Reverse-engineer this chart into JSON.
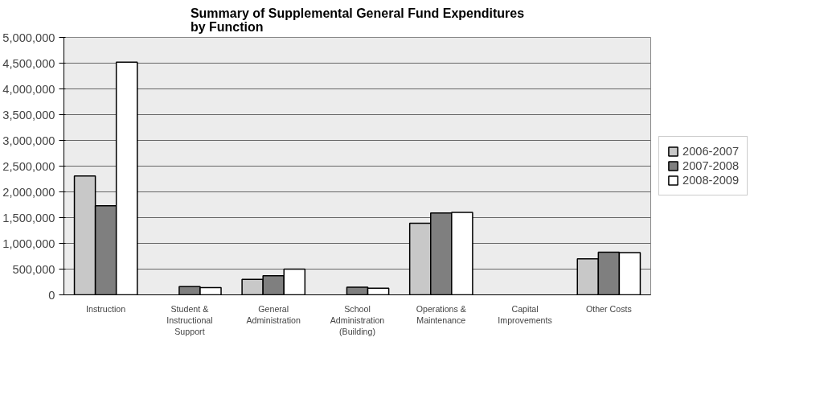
{
  "chart_data": {
    "type": "bar",
    "title": "Summary of Supplemental General Fund Expenditures\nby Function",
    "categories": [
      "Instruction",
      "Student & Instructional Support",
      "General Administration",
      "School Administration (Building)",
      "Operations & Maintenance",
      "Capital Improvements",
      "Other Costs"
    ],
    "series": [
      {
        "name": "2006-2007",
        "color": "#c8c8c8",
        "values": [
          2310000,
          null,
          300000,
          null,
          1390000,
          null,
          700000
        ]
      },
      {
        "name": "2007-2008",
        "color": "#7f7f7f",
        "values": [
          1730000,
          160000,
          370000,
          150000,
          1590000,
          null,
          830000
        ]
      },
      {
        "name": "2008-2009",
        "color": "#ffffff",
        "values": [
          4520000,
          140000,
          500000,
          130000,
          1600000,
          null,
          820000
        ]
      }
    ],
    "ylim": [
      0,
      5000000
    ],
    "yticks": [
      {
        "value": 0,
        "label": "0"
      },
      {
        "value": 500000,
        "label": "500,000"
      },
      {
        "value": 1000000,
        "label": "1,000,000"
      },
      {
        "value": 1500000,
        "label": "1,500,000"
      },
      {
        "value": 2000000,
        "label": "2,000,000"
      },
      {
        "value": 2500000,
        "label": "2,500,000"
      },
      {
        "value": 3000000,
        "label": "3,000,000"
      },
      {
        "value": 3500000,
        "label": "3,500,000"
      },
      {
        "value": 4000000,
        "label": "4,000,000"
      },
      {
        "value": 4500000,
        "label": "4,500,000"
      },
      {
        "value": 5000000,
        "label": "5,000,000"
      }
    ],
    "grid": "y",
    "legend": "right"
  }
}
